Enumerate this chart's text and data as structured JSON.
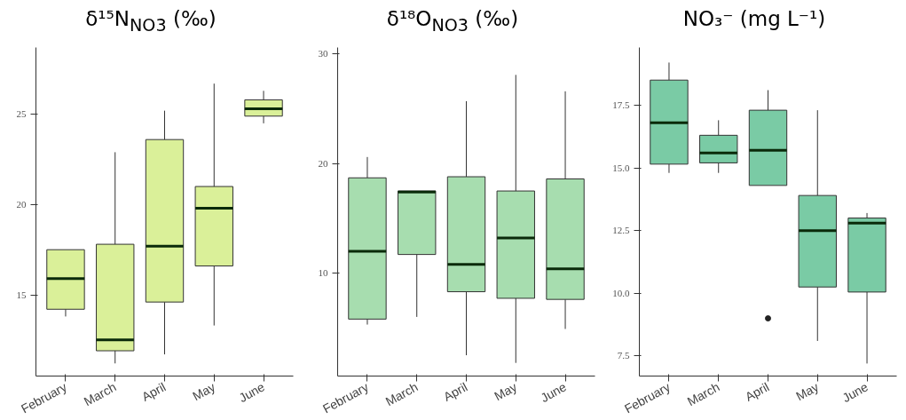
{
  "chart_data": [
    {
      "type": "box",
      "title": "δ¹⁵N$_{NO3}$ (‰)",
      "categories": [
        "February",
        "March",
        "April",
        "May",
        "June"
      ],
      "color": "#d6ee8e",
      "grid": false,
      "ylim": [
        10.5,
        28.7
      ],
      "yticks": [
        15,
        20,
        25
      ],
      "boxes": [
        {
          "low": 13.8,
          "q1": 14.2,
          "median": 15.9,
          "q3": 17.5,
          "high": 17.5
        },
        {
          "low": 11.2,
          "q1": 11.9,
          "median": 12.5,
          "q3": 17.8,
          "high": 22.9
        },
        {
          "low": 11.7,
          "q1": 14.6,
          "median": 17.7,
          "q3": 23.6,
          "high": 25.2
        },
        {
          "low": 13.3,
          "q1": 16.6,
          "median": 19.8,
          "q3": 21.0,
          "high": 26.7
        },
        {
          "low": 24.5,
          "q1": 24.9,
          "median": 25.3,
          "q3": 25.8,
          "high": 26.3
        }
      ]
    },
    {
      "type": "box",
      "title": "δ¹⁸O$_{NO3}$ (‰)",
      "categories": [
        "February",
        "March",
        "April",
        "May",
        "June"
      ],
      "color": "#9dd9a6",
      "grid": false,
      "ylim": [
        0.6,
        30.6
      ],
      "yticks": [
        10,
        20,
        30
      ],
      "boxes": [
        {
          "low": 5.3,
          "q1": 5.8,
          "median": 12.0,
          "q3": 18.7,
          "high": 20.6
        },
        {
          "low": 6.0,
          "q1": 11.7,
          "median": 17.4,
          "q3": 17.5,
          "high": 17.5
        },
        {
          "low": 2.5,
          "q1": 8.3,
          "median": 10.8,
          "q3": 18.8,
          "high": 25.7
        },
        {
          "low": 1.8,
          "q1": 7.7,
          "median": 13.2,
          "q3": 17.5,
          "high": 28.1
        },
        {
          "low": 4.9,
          "q1": 7.6,
          "median": 10.4,
          "q3": 18.6,
          "high": 26.6
        }
      ]
    },
    {
      "type": "box",
      "title": "NO₃⁻ (mg L⁻¹)",
      "categories": [
        "February",
        "March",
        "April",
        "May",
        "June"
      ],
      "color": "#6cc59b",
      "grid": false,
      "ylim": [
        6.7,
        19.8
      ],
      "yticks": [
        7.5,
        {
          "value": 10,
          "label": "10.0"
        },
        12.5,
        {
          "value": 15,
          "label": "15.0"
        },
        17.5
      ],
      "boxes": [
        {
          "low": 14.8,
          "q1": 15.15,
          "median": 16.8,
          "q3": 18.5,
          "high": 19.2
        },
        {
          "low": 14.8,
          "q1": 15.2,
          "median": 15.6,
          "q3": 16.3,
          "high": 16.9
        },
        {
          "low": 14.3,
          "q1": 14.3,
          "median": 15.7,
          "q3": 17.3,
          "high": 18.1,
          "outliers": [
            9.0
          ]
        },
        {
          "low": 8.1,
          "q1": 10.25,
          "median": 12.5,
          "q3": 13.9,
          "high": 17.3
        },
        {
          "low": 7.2,
          "q1": 10.05,
          "median": 12.8,
          "q3": 13.0,
          "high": 13.2
        }
      ]
    }
  ]
}
